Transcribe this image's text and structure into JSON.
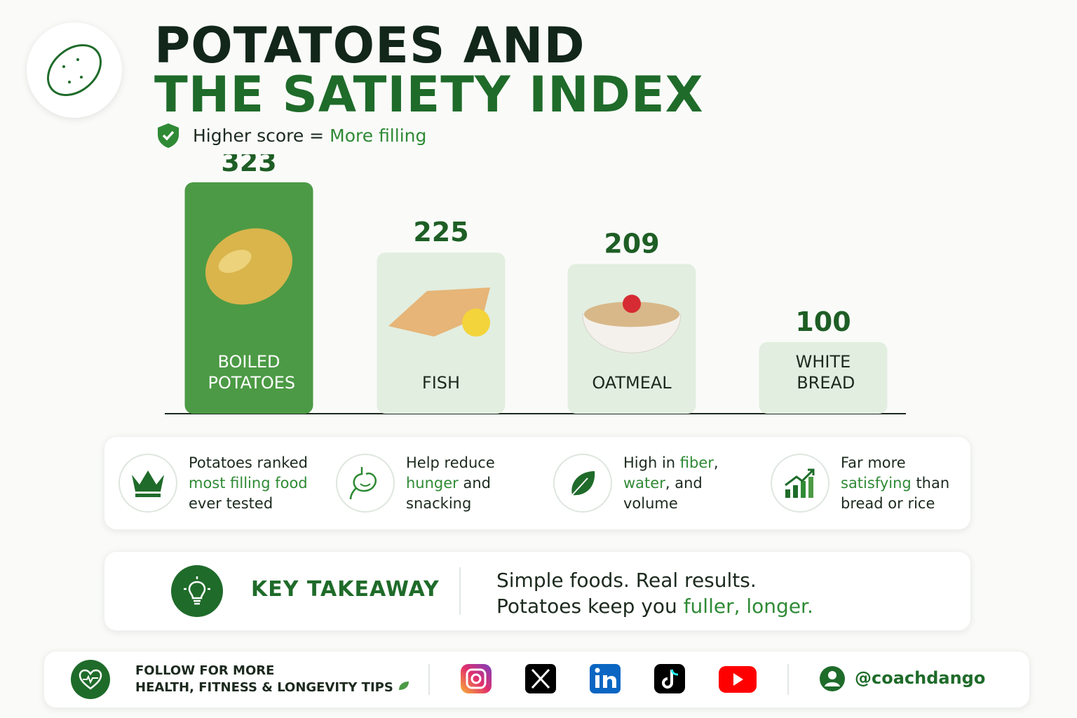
{
  "header": {
    "title_line1": "POTATOES AND",
    "title_line2": "THE SATIETY INDEX",
    "legend": [
      "Higher score =",
      "More filling"
    ]
  },
  "chart_data": {
    "type": "bar",
    "categories": [
      "BOILED POTATOES",
      "FISH",
      "OATMEAL",
      "WHITE BREAD"
    ],
    "values": [
      323,
      225,
      209,
      100
    ],
    "colors": [
      "#4c9a45",
      "#e2eee0",
      "#e2eee0",
      "#e2eee0"
    ]
  },
  "features": [
    {
      "parts": [
        "Potatoes ranked",
        "most filling food",
        "ever tested"
      ]
    },
    {
      "parts": [
        "Help reduce",
        "hunger",
        "and snacking"
      ]
    },
    {
      "parts": [
        "High in",
        "fiber",
        ",",
        "water",
        ", and volume"
      ]
    },
    {
      "parts": [
        "Far more",
        "satisfying",
        "than bread or rice"
      ]
    }
  ],
  "takeaway": {
    "label": "KEY TAKEAWAY",
    "line1": "Simple foods. Real results.",
    "line2": [
      "Potatoes keep you",
      "fuller, longer."
    ]
  },
  "footer": {
    "line1": "FOLLOW FOR MORE",
    "line2": "HEALTH, FITNESS & LONGEVITY TIPS",
    "handle": "@coachdango"
  }
}
